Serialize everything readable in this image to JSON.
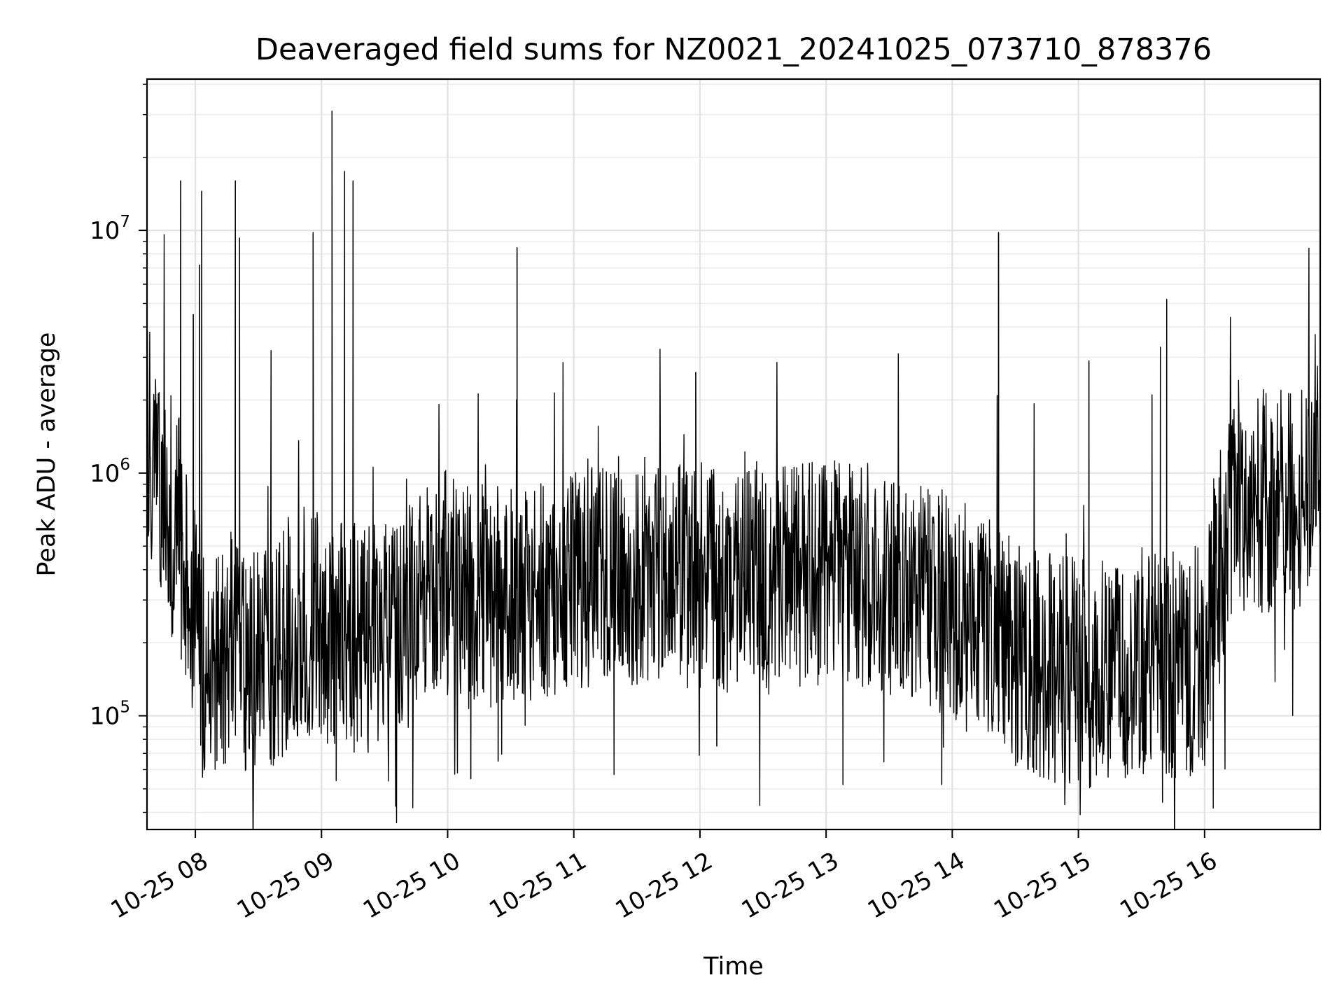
{
  "chart_data": {
    "type": "line",
    "title": "Deaveraged field sums for NZ0021_20241025_073710_878376",
    "xlabel": "Time",
    "ylabel": "Peak ADU - average",
    "y_scale": "log",
    "ylim": [
      34000,
      42000000
    ],
    "xlim": [
      "2024-10-25 07:37",
      "2024-10-25 16:55"
    ],
    "grid": true,
    "line_color": "#000000",
    "x_tick_labels": [
      "10-25 08",
      "10-25 09",
      "10-25 10",
      "10-25 11",
      "10-25 12",
      "10-25 13",
      "10-25 14",
      "10-25 15",
      "10-25 16"
    ],
    "x_tick_times": [
      "2024-10-25 08:00",
      "2024-10-25 09:00",
      "2024-10-25 10:00",
      "2024-10-25 11:00",
      "2024-10-25 12:00",
      "2024-10-25 13:00",
      "2024-10-25 14:00",
      "2024-10-25 15:00",
      "2024-10-25 16:00"
    ],
    "y_tick_labels": [
      {
        "base": "10",
        "exp": "5",
        "value": 100000
      },
      {
        "base": "10",
        "exp": "6",
        "value": 1000000
      },
      {
        "base": "10",
        "exp": "7",
        "value": 10000000
      }
    ],
    "series": [
      {
        "x": [
          "2024-10-25 07:37",
          "2024-10-25 07:40",
          "2024-10-25 07:44",
          "2024-10-25 07:48",
          "2024-10-25 07:52",
          "2024-10-25 07:55",
          "2024-10-25 07:59",
          "2024-10-25 08:04",
          "2024-10-25 08:10",
          "2024-10-25 08:16",
          "2024-10-25 08:24",
          "2024-10-25 08:32",
          "2024-10-25 08:42",
          "2024-10-25 08:50",
          "2024-10-25 09:00",
          "2024-10-25 09:10",
          "2024-10-25 09:20",
          "2024-10-25 09:30",
          "2024-10-25 09:45",
          "2024-10-25 10:00",
          "2024-10-25 10:15",
          "2024-10-25 10:30",
          "2024-10-25 10:45",
          "2024-10-25 11:00",
          "2024-10-25 11:20",
          "2024-10-25 11:40",
          "2024-10-25 12:00",
          "2024-10-25 12:20",
          "2024-10-25 12:40",
          "2024-10-25 13:00",
          "2024-10-25 13:20",
          "2024-10-25 13:40",
          "2024-10-25 14:00",
          "2024-10-25 14:15",
          "2024-10-25 14:30",
          "2024-10-25 14:45",
          "2024-10-25 15:00",
          "2024-10-25 15:15",
          "2024-10-25 15:30",
          "2024-10-25 15:45",
          "2024-10-25 16:00",
          "2024-10-25 16:05",
          "2024-10-25 16:15",
          "2024-10-25 16:30",
          "2024-10-25 16:45",
          "2024-10-25 16:55"
        ],
        "values": [
          1600000,
          1200000,
          800000,
          650000,
          600000,
          400000,
          250000,
          180000,
          150000,
          200000,
          170000,
          160000,
          200000,
          250000,
          230000,
          220000,
          200000,
          210000,
          280000,
          350000,
          300000,
          330000,
          350000,
          380000,
          400000,
          400000,
          380000,
          360000,
          370000,
          380000,
          370000,
          340000,
          280000,
          230000,
          180000,
          160000,
          150000,
          150000,
          160000,
          160000,
          170000,
          350000,
          700000,
          800000,
          700000,
          1500000
        ]
      }
    ],
    "spikes": [
      {
        "x": "2024-10-25 07:53",
        "value": 16000000
      },
      {
        "x": "2024-10-25 07:59",
        "value": 4500000
      },
      {
        "x": "2024-10-25 08:02",
        "value": 7200000
      },
      {
        "x": "2024-10-25 08:03",
        "value": 14500000
      },
      {
        "x": "2024-10-25 08:19",
        "value": 16000000
      },
      {
        "x": "2024-10-25 08:21",
        "value": 9300000
      },
      {
        "x": "2024-10-25 08:36",
        "value": 3200000
      },
      {
        "x": "2024-10-25 08:56",
        "value": 9800000
      },
      {
        "x": "2024-10-25 09:05",
        "value": 31000000
      },
      {
        "x": "2024-10-25 09:11",
        "value": 17500000
      },
      {
        "x": "2024-10-25 09:15",
        "value": 16000000
      },
      {
        "x": "2024-10-25 10:33",
        "value": 8500000
      },
      {
        "x": "2024-10-25 11:58",
        "value": 2600000
      },
      {
        "x": "2024-10-25 14:22",
        "value": 9800000
      },
      {
        "x": "2024-10-25 15:05",
        "value": 2900000
      },
      {
        "x": "2024-10-25 15:35",
        "value": 2100000
      },
      {
        "x": "2024-10-25 15:39",
        "value": 3300000
      },
      {
        "x": "2024-10-25 15:42",
        "value": 5200000
      }
    ],
    "dips": [
      {
        "x": "2024-10-25 08:24",
        "value": 60000
      },
      {
        "x": "2024-10-25 09:07",
        "value": 54000
      },
      {
        "x": "2024-10-25 10:11",
        "value": 55000
      },
      {
        "x": "2024-10-25 10:24",
        "value": 65000
      },
      {
        "x": "2024-10-25 12:08",
        "value": 75000
      },
      {
        "x": "2024-10-25 13:08",
        "value": 52000
      },
      {
        "x": "2024-10-25 13:55",
        "value": 52000
      },
      {
        "x": "2024-10-25 14:40",
        "value": 60000
      },
      {
        "x": "2024-10-25 15:40",
        "value": 44000
      }
    ]
  }
}
